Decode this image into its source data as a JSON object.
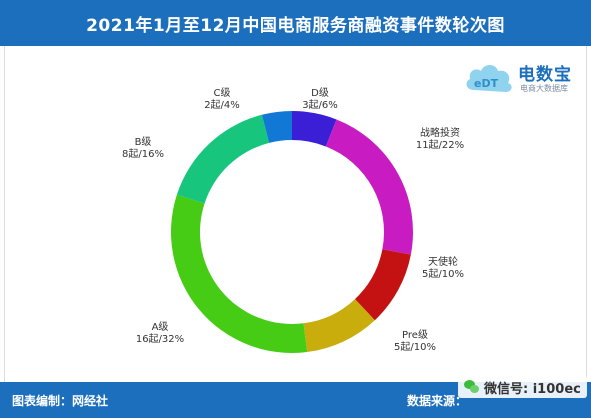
{
  "header": {
    "title": "2021年1月至12月中国电商服务商融资事件数轮次图"
  },
  "logo": {
    "brand": "电数宝",
    "tagline": "电商大数据库"
  },
  "footer": {
    "compiled_by": "图表编制：网经社",
    "source": "数据来源：",
    "wechat": "微信号: i100ec"
  },
  "chart_data": {
    "type": "pie",
    "title": "2021年1月至12月中国电商服务商融资事件数轮次图",
    "donut": true,
    "start": "top",
    "direction": "clockwise",
    "slices": [
      {
        "label": "D级",
        "value": 3,
        "percent": "6%",
        "display": "3起/6%",
        "color": "#3a1fd6"
      },
      {
        "label": "战略投资",
        "value": 11,
        "percent": "22%",
        "display": "11起/22%",
        "color": "#c81cc2"
      },
      {
        "label": "天使轮",
        "value": 5,
        "percent": "10%",
        "display": "5起/10%",
        "color": "#c41212"
      },
      {
        "label": "Pre级",
        "value": 5,
        "percent": "10%",
        "display": "5起/10%",
        "color": "#c9ad0c"
      },
      {
        "label": "A级",
        "value": 16,
        "percent": "32%",
        "display": "16起/32%",
        "color": "#46cc14"
      },
      {
        "label": "B级",
        "value": 8,
        "percent": "16%",
        "display": "8起/16%",
        "color": "#17c67c"
      },
      {
        "label": "C级",
        "value": 2,
        "percent": "4%",
        "display": "2起/4%",
        "color": "#1278d6"
      }
    ]
  }
}
